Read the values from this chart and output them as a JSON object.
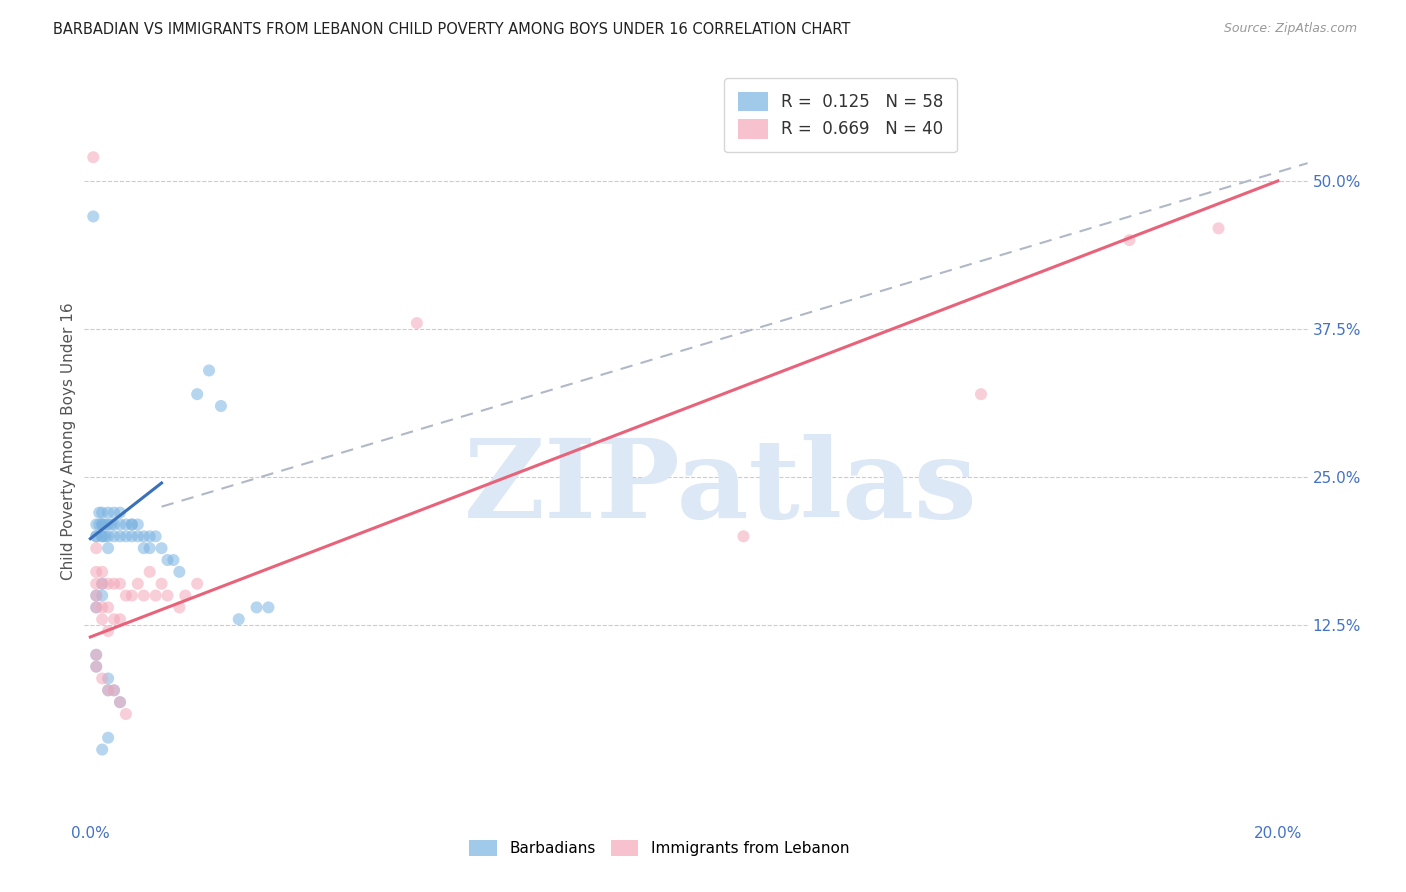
{
  "title": "BARBADIAN VS IMMIGRANTS FROM LEBANON CHILD POVERTY AMONG BOYS UNDER 16 CORRELATION CHART",
  "source": "Source: ZipAtlas.com",
  "ylabel": "Child Poverty Among Boys Under 16",
  "xlim": [
    -0.001,
    0.205
  ],
  "ylim": [
    -0.04,
    0.6
  ],
  "blue_dot_color": "#7ab3e0",
  "pink_dot_color": "#f4a7b9",
  "blue_line_color": "#3a6fba",
  "pink_line_color": "#e8637a",
  "gray_dashed_color": "#b0b8c8",
  "dot_alpha": 0.55,
  "dot_size": 75,
  "background_color": "#ffffff",
  "watermark_text": "ZIPatlas",
  "watermark_color": "#dce8f5",
  "watermark_fontsize": 80,
  "ytick_labels": [
    "12.5%",
    "25.0%",
    "37.5%",
    "50.0%"
  ],
  "ytick_vals": [
    0.125,
    0.25,
    0.375,
    0.5
  ],
  "xtick_labels": [
    "0.0%",
    "20.0%"
  ],
  "xtick_vals": [
    0.0,
    0.2
  ],
  "blue_line_x": [
    0.0,
    0.012
  ],
  "blue_line_y": [
    0.198,
    0.245
  ],
  "pink_line_x": [
    0.0,
    0.2
  ],
  "pink_line_y": [
    0.115,
    0.5
  ],
  "gray_line_x": [
    0.012,
    0.205
  ],
  "gray_line_y": [
    0.225,
    0.515
  ],
  "barbadians_x": [
    0.0005,
    0.001,
    0.001,
    0.001,
    0.0015,
    0.0015,
    0.002,
    0.002,
    0.002,
    0.002,
    0.002,
    0.0025,
    0.0025,
    0.003,
    0.003,
    0.003,
    0.003,
    0.0035,
    0.004,
    0.004,
    0.004,
    0.005,
    0.005,
    0.005,
    0.006,
    0.006,
    0.007,
    0.007,
    0.007,
    0.008,
    0.008,
    0.009,
    0.009,
    0.01,
    0.01,
    0.011,
    0.012,
    0.013,
    0.014,
    0.015,
    0.018,
    0.02,
    0.022,
    0.025,
    0.028,
    0.03,
    0.001,
    0.001,
    0.002,
    0.002,
    0.003,
    0.003,
    0.004,
    0.005,
    0.001,
    0.001,
    0.002,
    0.003
  ],
  "barbadians_y": [
    0.47,
    0.21,
    0.2,
    0.2,
    0.22,
    0.21,
    0.22,
    0.21,
    0.21,
    0.2,
    0.2,
    0.21,
    0.2,
    0.22,
    0.21,
    0.2,
    0.19,
    0.21,
    0.22,
    0.21,
    0.2,
    0.22,
    0.21,
    0.2,
    0.21,
    0.2,
    0.21,
    0.21,
    0.2,
    0.21,
    0.2,
    0.2,
    0.19,
    0.2,
    0.19,
    0.2,
    0.19,
    0.18,
    0.18,
    0.17,
    0.32,
    0.34,
    0.31,
    0.13,
    0.14,
    0.14,
    0.15,
    0.14,
    0.16,
    0.15,
    0.08,
    0.07,
    0.07,
    0.06,
    0.1,
    0.09,
    0.02,
    0.03
  ],
  "lebanon_x": [
    0.0005,
    0.001,
    0.001,
    0.001,
    0.001,
    0.001,
    0.002,
    0.002,
    0.002,
    0.002,
    0.003,
    0.003,
    0.003,
    0.004,
    0.004,
    0.005,
    0.005,
    0.006,
    0.007,
    0.008,
    0.009,
    0.01,
    0.011,
    0.012,
    0.013,
    0.015,
    0.016,
    0.018,
    0.001,
    0.001,
    0.002,
    0.003,
    0.004,
    0.005,
    0.006,
    0.055,
    0.11,
    0.15,
    0.175,
    0.19
  ],
  "lebanon_y": [
    0.52,
    0.19,
    0.17,
    0.16,
    0.15,
    0.14,
    0.17,
    0.16,
    0.14,
    0.13,
    0.16,
    0.14,
    0.12,
    0.16,
    0.13,
    0.16,
    0.13,
    0.15,
    0.15,
    0.16,
    0.15,
    0.17,
    0.15,
    0.16,
    0.15,
    0.14,
    0.15,
    0.16,
    0.1,
    0.09,
    0.08,
    0.07,
    0.07,
    0.06,
    0.05,
    0.38,
    0.2,
    0.32,
    0.45,
    0.46
  ]
}
